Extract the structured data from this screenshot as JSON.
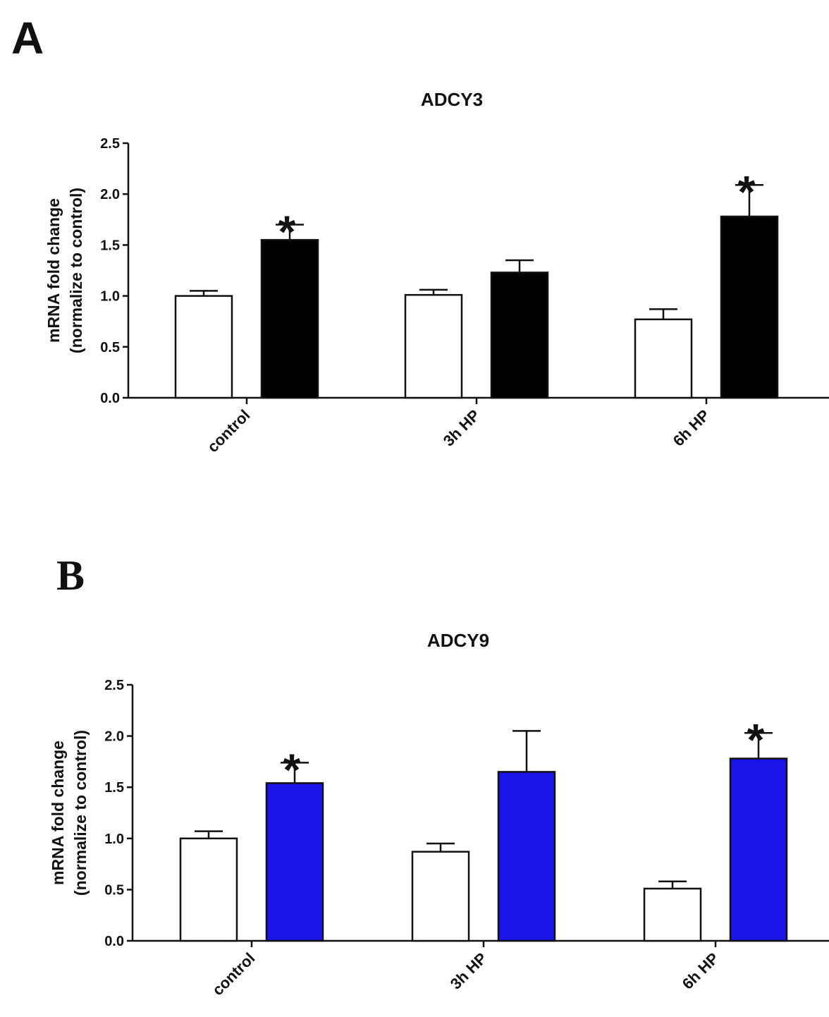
{
  "chart_data": [
    {
      "type": "bar",
      "panel": "A",
      "title": "ADCY3",
      "ylabel": [
        "mRNA fold change",
        "(normalize to control)"
      ],
      "categories": [
        "control",
        "3h HP",
        "6h HP"
      ],
      "series": [
        {
          "color": "#ffffff",
          "values": [
            1.0,
            1.01,
            0.77
          ],
          "errors": [
            0.05,
            0.05,
            0.1
          ],
          "significance": [
            null,
            null,
            null
          ]
        },
        {
          "color": "#000000",
          "values": [
            1.55,
            1.23,
            1.78
          ],
          "errors": [
            0.15,
            0.12,
            0.31
          ],
          "significance": [
            "*",
            null,
            "*"
          ]
        }
      ],
      "ylim": [
        0,
        2.5
      ],
      "yticks": [
        {
          "value": 0,
          "label": "0.0"
        },
        0.5,
        {
          "value": 1,
          "label": "1.0"
        },
        1.5,
        {
          "value": 2,
          "label": "2.0"
        },
        2.5
      ]
    },
    {
      "type": "bar",
      "panel": "B",
      "title": "ADCY9",
      "ylabel": [
        "mRNA fold change",
        "(normalize to control)"
      ],
      "categories": [
        "control",
        "3h HP",
        "6h HP"
      ],
      "series": [
        {
          "color": "#ffffff",
          "values": [
            1.0,
            0.87,
            0.51
          ],
          "errors": [
            0.07,
            0.08,
            0.07
          ],
          "significance": [
            null,
            null,
            null
          ]
        },
        {
          "color": "#1a14e6",
          "values": [
            1.54,
            1.65,
            1.78
          ],
          "errors": [
            0.2,
            0.4,
            0.25
          ],
          "significance": [
            "*",
            null,
            "*"
          ]
        }
      ],
      "ylim": [
        0,
        2.5
      ],
      "yticks": [
        {
          "value": 0,
          "label": "0.0"
        },
        0.5,
        {
          "value": 1,
          "label": "1.0"
        },
        1.5,
        {
          "value": 2,
          "label": "2.0"
        },
        2.5
      ]
    }
  ]
}
